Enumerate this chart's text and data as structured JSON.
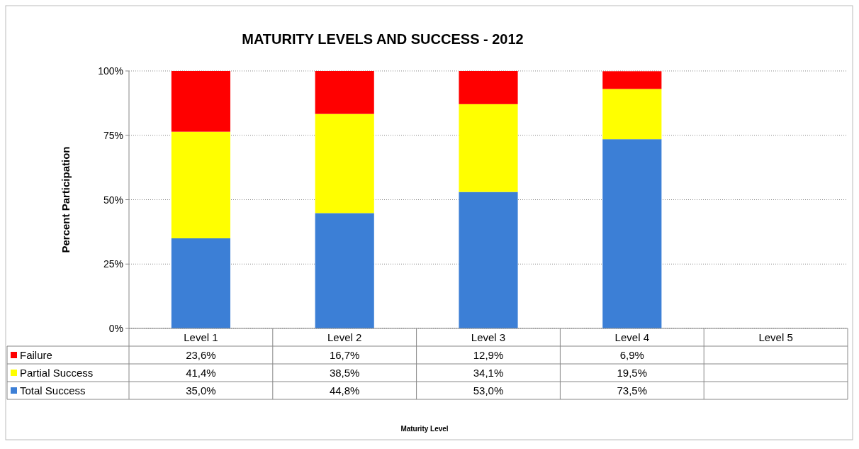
{
  "chart_data": {
    "type": "bar",
    "title": "MATURITY LEVELS AND SUCCESS - 2012",
    "annotations": [
      "Maturity Level"
    ],
    "ylabel": "Percent Participation",
    "stacked": true,
    "categories": [
      "Level 1",
      "Level 2",
      "Level 3",
      "Level 4",
      "Level 5"
    ],
    "series": [
      {
        "name": "Total Success",
        "color": "#3c7fd6",
        "values": [
          35.0,
          44.8,
          53.0,
          73.5,
          null
        ],
        "value_labels": [
          "35,0%",
          "44,8%",
          "53,0%",
          "73,5%",
          null
        ]
      },
      {
        "name": "Partial Success",
        "color": "#ffff00",
        "values": [
          41.4,
          38.5,
          34.1,
          19.5,
          null
        ],
        "value_labels": [
          "41,4%",
          "38,5%",
          "34,1%",
          "19,5%",
          null
        ]
      },
      {
        "name": "Failure",
        "color": "#ff0000",
        "values": [
          23.6,
          16.7,
          12.9,
          6.9,
          null
        ],
        "value_labels": [
          "23,6%",
          "16,7%",
          "12,9%",
          "6,9%",
          null
        ]
      }
    ],
    "ylim": [
      0,
      100
    ],
    "yticks": [
      {
        "value": 0,
        "label": "0%"
      },
      {
        "value": 25,
        "label": "25%"
      },
      {
        "value": 50,
        "label": "50%"
      },
      {
        "value": 75,
        "label": "75%"
      },
      {
        "value": 100,
        "label": "100%"
      }
    ],
    "grid": "y",
    "legend": "bottom"
  }
}
